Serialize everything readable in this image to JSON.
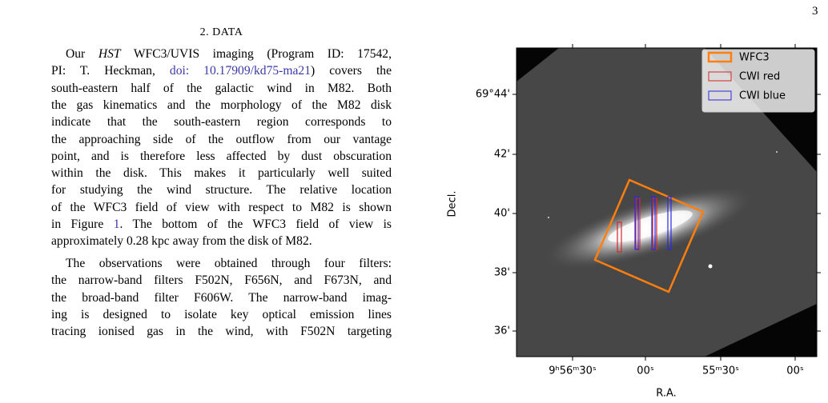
{
  "page_number": "3",
  "section": {
    "heading": "2. DATA",
    "paragraphs": [
      {
        "lines": [
          [
            "Our ",
            "HST",
            " WFC3/UVIS imaging (Program ID: 17542,"
          ],
          [
            "PI: T. Heckman, ",
            "doi: 10.17909/kd75-ma21",
            ") covers the"
          ],
          [
            "south-eastern half of the galactic wind in M82. Both"
          ],
          [
            "the gas kinematics and the morphology of the M82 disk"
          ],
          [
            "indicate that the south-eastern region corresponds to"
          ],
          [
            "the approaching side of the outflow from our vantage"
          ],
          [
            "point, and is therefore less affected by dust obscuration"
          ],
          [
            "within the disk. This makes it particularly well suited"
          ],
          [
            "for studying the wind structure. The relative location"
          ],
          [
            "of the WFC3 field of view with respect to M82 is shown"
          ],
          [
            "in Figure ",
            "1",
            ". The bottom of the WFC3 field of view is"
          ],
          [
            "approximately 0.28 kpc away from the disk of M82."
          ]
        ]
      },
      {
        "lines": [
          [
            "The observations were obtained through four filters:"
          ],
          [
            "the narrow-band filters F502N, F656N, and F673N, and"
          ],
          [
            "the broad-band filter F606W. The narrow-band imag-"
          ],
          [
            "ing is designed to isolate key optical emission lines"
          ],
          [
            "tracing ionised gas in the wind, with F502N targeting"
          ]
        ]
      }
    ]
  },
  "figure": {
    "y_label": "Decl.",
    "x_label": "R.A.",
    "y_tick_labels": [
      "69°44'",
      "42'",
      "40'",
      "38'",
      "36'"
    ],
    "x_tick_labels": [
      "9ʰ56ᵐ30ˢ",
      "00ˢ",
      "55ᵐ30ˢ",
      "00ˢ"
    ],
    "legend": [
      "WFC3",
      "CWI red",
      "CWI blue"
    ]
  }
}
